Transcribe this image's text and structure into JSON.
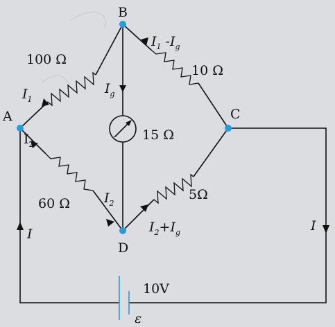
{
  "nodes": {
    "a": "A",
    "b": "B",
    "c": "C",
    "d": "D"
  },
  "resistors": {
    "ab": "100 Ω",
    "bc": "10 Ω",
    "ad": "60 Ω",
    "dc": "5Ω",
    "galv": "15 Ω"
  },
  "currents": {
    "i": "I",
    "i1": "1",
    "i2": "2",
    "g": "g",
    "minus": " -",
    "plus": "+"
  },
  "battery": {
    "voltage": "10V",
    "emf": "ε"
  }
}
